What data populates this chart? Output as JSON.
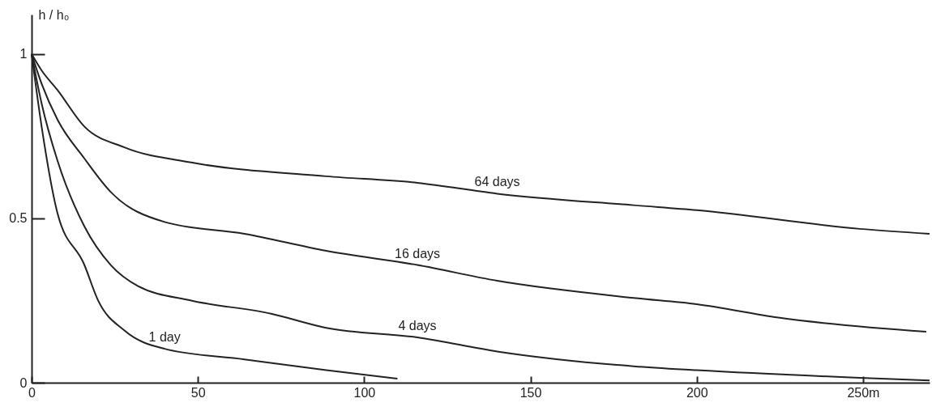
{
  "chart_data": {
    "type": "line",
    "ylabel": "h / h₀",
    "xlim": [
      0,
      270
    ],
    "ylim": [
      0,
      1.12
    ],
    "xticks": [
      0,
      50,
      100,
      150,
      200,
      {
        "value": 250,
        "label": "250m"
      }
    ],
    "yticks": [
      0,
      0.5,
      1
    ],
    "grid": false,
    "legend": false,
    "marker": "none",
    "line_style": "solid",
    "series": [
      {
        "name": "64 days",
        "color": "#222222",
        "x": [
          0,
          3,
          7.8,
          15.8,
          27.9,
          48,
          88.6,
          116,
          140,
          181,
          200,
          249,
          270
        ],
        "values": [
          1,
          0.95,
          0.89,
          0.78,
          0.716,
          0.67,
          0.628,
          0.608,
          0.575,
          0.54,
          0.525,
          0.468,
          0.453
        ]
      },
      {
        "name": "16 days",
        "color": "#222222",
        "x": [
          0,
          3,
          7.8,
          15.8,
          23.8,
          40,
          64,
          88.6,
          116,
          140,
          181,
          200,
          224.5,
          269
        ],
        "values": [
          1,
          0.91,
          0.8,
          0.683,
          0.58,
          0.489,
          0.453,
          0.401,
          0.358,
          0.31,
          0.258,
          0.239,
          0.198,
          0.155
        ]
      },
      {
        "name": "4 days",
        "color": "#222222",
        "x": [
          0,
          3,
          7.8,
          15.8,
          23.8,
          32,
          48,
          72,
          88.6,
          116,
          140,
          181,
          200,
          249,
          270
        ],
        "values": [
          1,
          0.85,
          0.675,
          0.477,
          0.358,
          0.294,
          0.25,
          0.21,
          0.167,
          0.138,
          0.095,
          0.05,
          0.038,
          0.015,
          0.007
        ]
      },
      {
        "name": "1 day",
        "color": "#222222",
        "x": [
          0,
          3,
          7.8,
          15.8,
          20,
          28,
          40,
          64,
          88.6,
          110
        ],
        "values": [
          1,
          0.78,
          0.515,
          0.36,
          0.25,
          0.158,
          0.103,
          0.071,
          0.038,
          0.012
        ]
      }
    ]
  }
}
